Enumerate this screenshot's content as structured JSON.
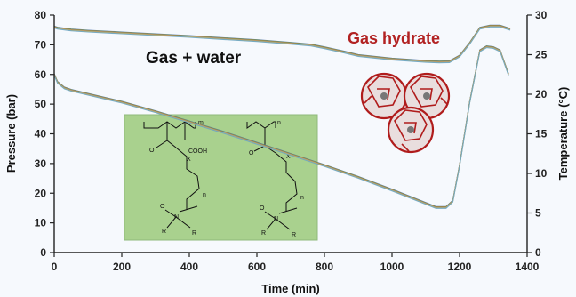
{
  "chart_data": {
    "type": "line",
    "xlabel": "Time (min)",
    "ylabel_left": "Pressure (bar)",
    "ylabel_right": "Temperature (°C)",
    "xlim": [
      0,
      1400
    ],
    "ylim_left": [
      0,
      80
    ],
    "ylim_right": [
      0,
      30
    ],
    "x_ticks": [
      "0",
      "200",
      "400",
      "600",
      "800",
      "1000",
      "1200",
      "1400"
    ],
    "y_left_ticks": [
      "0",
      "10",
      "20",
      "30",
      "40",
      "50",
      "60",
      "70",
      "80"
    ],
    "y_right_ticks": [
      "0",
      "5",
      "10",
      "15",
      "20",
      "25",
      "30"
    ],
    "grid": false,
    "annotations": {
      "gas_water": "Gas + water",
      "gas_hydrate": "Gas hydrate"
    },
    "series_colors": [
      "#4a6fa5",
      "#7a9a3c",
      "#c87a3a",
      "#8e9a9e",
      "#d6b24a",
      "#6aa6c8"
    ],
    "series": [
      {
        "axis": "left",
        "x": [
          0,
          10,
          50,
          100,
          200,
          300,
          400,
          500,
          600,
          700,
          760,
          800,
          860,
          900,
          1000,
          1100,
          1140,
          1170,
          1200,
          1230,
          1260,
          1290,
          1320,
          1350
        ],
        "values": [
          76,
          75.6,
          75,
          74.6,
          74,
          73.4,
          72.8,
          72.1,
          71.4,
          70.5,
          69.9,
          69,
          67.5,
          66.4,
          65.2,
          64.4,
          64.2,
          64.3,
          66.2,
          70.5,
          75.6,
          76.3,
          76.3,
          75.2
        ]
      },
      {
        "axis": "right",
        "x": [
          0,
          10,
          30,
          50,
          100,
          200,
          300,
          400,
          500,
          600,
          700,
          800,
          900,
          1000,
          1100,
          1130,
          1160,
          1180,
          1200,
          1230,
          1260,
          1280,
          1300,
          1320,
          1345
        ],
        "values": [
          22.5,
          21.5,
          20.8,
          20.5,
          20,
          19,
          17.8,
          16.5,
          15.2,
          13.8,
          12.4,
          11,
          9.5,
          7.9,
          6.2,
          5.7,
          5.7,
          6.5,
          11,
          19,
          25.5,
          26,
          25.9,
          25.5,
          22.5
        ]
      }
    ]
  }
}
